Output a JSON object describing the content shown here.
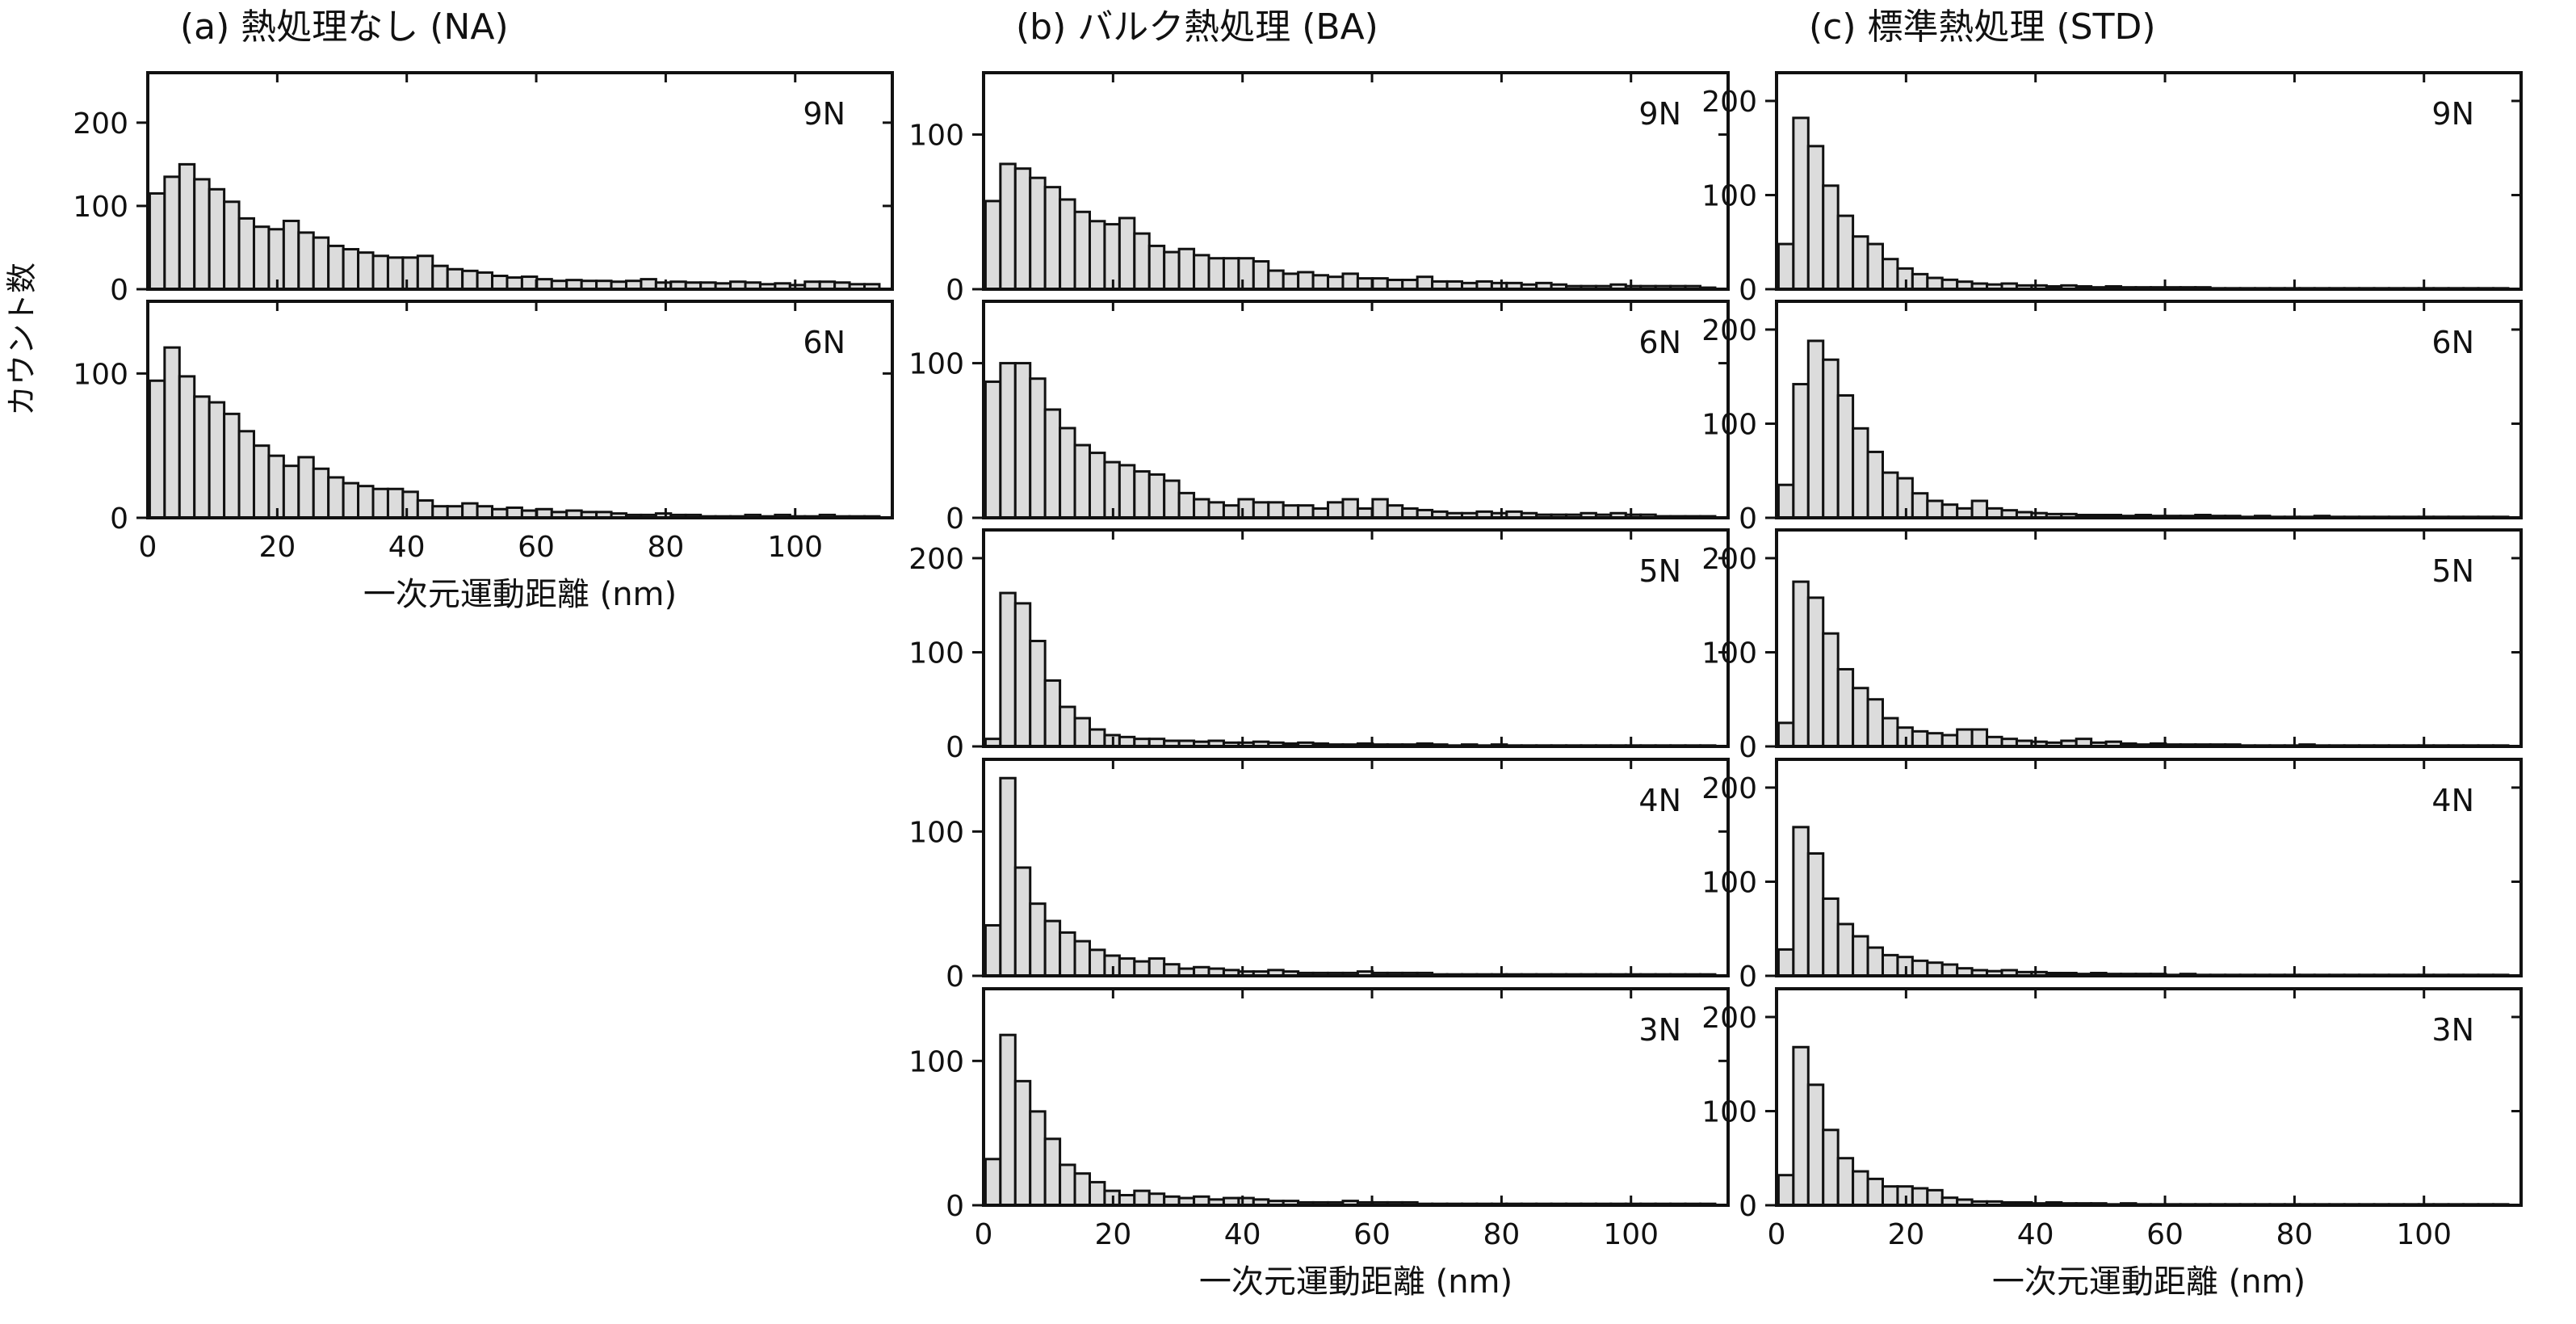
{
  "figure": {
    "y_label": "カウント数",
    "x_label": "一次元運動距離 (nm)"
  },
  "chart_data": [
    {
      "type": "bar",
      "title": "(a) 熱処理なし (NA)",
      "xlabel": "一次元運動距離 (nm)",
      "ylabel": "カウント数",
      "xlim": [
        0,
        115
      ],
      "xticks": [
        0,
        20,
        40,
        60,
        80,
        100
      ],
      "bin_width": 2.3,
      "panels": [
        {
          "label": "9N",
          "ylim": [
            0,
            260
          ],
          "yticks": [
            0,
            100,
            200
          ],
          "values": [
            115,
            135,
            150,
            132,
            120,
            105,
            85,
            75,
            72,
            82,
            68,
            62,
            52,
            48,
            44,
            40,
            38,
            38,
            40,
            28,
            24,
            22,
            20,
            16,
            14,
            15,
            12,
            10,
            11,
            10,
            10,
            9,
            10,
            12,
            8,
            9,
            8,
            8,
            7,
            9,
            8,
            6,
            7,
            5,
            9,
            9,
            8,
            6,
            6,
            5,
            6,
            6,
            7,
            5,
            6,
            5,
            4,
            5,
            4,
            4
          ]
        },
        {
          "label": "6N",
          "ylim": [
            0,
            150
          ],
          "yticks": [
            0,
            100
          ],
          "values": [
            95,
            118,
            98,
            84,
            80,
            72,
            60,
            50,
            43,
            36,
            42,
            34,
            28,
            24,
            22,
            20,
            20,
            18,
            12,
            8,
            8,
            10,
            8,
            6,
            7,
            5,
            6,
            4,
            5,
            4,
            4,
            3,
            2,
            2,
            3,
            2,
            2,
            1,
            1,
            1,
            2,
            1,
            2,
            1,
            1,
            2,
            1,
            1,
            1,
            1,
            1,
            1,
            1,
            1,
            1,
            1,
            1,
            1,
            1,
            1
          ]
        }
      ]
    },
    {
      "type": "bar",
      "title": "(b) バルク熱処理 (BA)",
      "xlabel": "一次元運動距離 (nm)",
      "ylabel": "カウント数",
      "xlim": [
        0,
        115
      ],
      "xticks": [
        0,
        20,
        40,
        60,
        80,
        100
      ],
      "bin_width": 2.3,
      "panels": [
        {
          "label": "9N",
          "ylim": [
            0,
            140
          ],
          "yticks": [
            0,
            100
          ],
          "values": [
            57,
            81,
            78,
            72,
            66,
            58,
            50,
            44,
            42,
            46,
            36,
            28,
            24,
            26,
            22,
            20,
            20,
            20,
            18,
            12,
            10,
            11,
            9,
            8,
            10,
            7,
            7,
            6,
            6,
            8,
            5,
            5,
            4,
            5,
            4,
            4,
            3,
            4,
            3,
            2,
            2,
            2,
            3,
            2,
            2,
            2,
            2,
            2,
            1,
            2,
            1,
            1,
            1,
            1,
            1,
            1,
            1,
            1,
            1,
            1
          ]
        },
        {
          "label": "6N",
          "ylim": [
            0,
            140
          ],
          "yticks": [
            0,
            100
          ],
          "values": [
            88,
            100,
            100,
            90,
            70,
            58,
            47,
            42,
            36,
            34,
            30,
            28,
            24,
            16,
            12,
            10,
            8,
            12,
            10,
            10,
            8,
            8,
            6,
            10,
            12,
            6,
            12,
            8,
            6,
            5,
            4,
            3,
            3,
            4,
            3,
            4,
            3,
            2,
            2,
            2,
            3,
            2,
            3,
            2,
            2,
            1,
            1,
            1,
            1,
            1,
            1,
            1,
            1,
            1,
            1,
            1,
            1,
            1,
            1,
            1
          ]
        },
        {
          "label": "5N",
          "ylim": [
            0,
            230
          ],
          "yticks": [
            0,
            100,
            200
          ],
          "values": [
            8,
            163,
            152,
            112,
            70,
            42,
            30,
            18,
            12,
            10,
            8,
            8,
            6,
            6,
            5,
            6,
            4,
            4,
            5,
            4,
            3,
            4,
            3,
            2,
            2,
            3,
            2,
            2,
            2,
            3,
            2,
            1,
            2,
            1,
            2,
            1,
            1,
            1,
            1,
            1,
            1,
            1,
            1,
            1,
            1,
            1,
            1,
            1,
            1,
            1,
            1,
            1,
            1,
            1,
            1,
            1,
            1,
            1,
            1,
            1
          ]
        },
        {
          "label": "4N",
          "ylim": [
            0,
            150
          ],
          "yticks": [
            0,
            100
          ],
          "values": [
            35,
            137,
            75,
            50,
            38,
            30,
            24,
            18,
            14,
            12,
            10,
            12,
            8,
            5,
            6,
            5,
            4,
            3,
            3,
            4,
            3,
            2,
            2,
            2,
            2,
            3,
            2,
            2,
            2,
            2,
            1,
            1,
            1,
            1,
            1,
            1,
            1,
            1,
            1,
            1,
            1,
            1,
            1,
            1,
            1,
            1,
            1,
            1,
            1,
            1,
            1,
            1,
            1,
            1,
            1,
            1,
            1,
            1,
            1,
            1
          ]
        },
        {
          "label": "3N",
          "ylim": [
            0,
            150
          ],
          "yticks": [
            0,
            100
          ],
          "values": [
            32,
            118,
            86,
            65,
            46,
            28,
            22,
            16,
            10,
            7,
            10,
            8,
            6,
            5,
            6,
            4,
            5,
            5,
            4,
            3,
            3,
            2,
            2,
            2,
            3,
            2,
            2,
            2,
            2,
            1,
            1,
            1,
            1,
            1,
            1,
            1,
            1,
            1,
            1,
            1,
            1,
            1,
            1,
            1,
            1,
            1,
            1,
            1,
            1,
            1,
            1,
            1,
            1,
            1,
            1,
            1,
            1,
            1,
            1,
            1
          ]
        }
      ]
    },
    {
      "type": "bar",
      "title": "(c) 標準熱処理 (STD)",
      "xlabel": "一次元運動距離 (nm)",
      "ylabel": "カウント数",
      "xlim": [
        0,
        115
      ],
      "xticks": [
        0,
        20,
        40,
        60,
        80,
        100
      ],
      "bin_width": 2.3,
      "panels": [
        {
          "label": "9N",
          "ylim": [
            0,
            230
          ],
          "yticks": [
            0,
            100,
            200
          ],
          "values": [
            48,
            182,
            152,
            110,
            78,
            56,
            48,
            32,
            22,
            16,
            12,
            10,
            8,
            6,
            5,
            6,
            4,
            4,
            3,
            4,
            3,
            2,
            3,
            2,
            2,
            2,
            2,
            2,
            2,
            1,
            1,
            1,
            1,
            1,
            1,
            1,
            1,
            1,
            1,
            1,
            1,
            1,
            1,
            1,
            1,
            1,
            1,
            1,
            1,
            1,
            1,
            1,
            1,
            1,
            1,
            1,
            1,
            1,
            1,
            1
          ]
        },
        {
          "label": "6N",
          "ylim": [
            0,
            230
          ],
          "yticks": [
            0,
            100,
            200
          ],
          "values": [
            35,
            142,
            188,
            168,
            130,
            95,
            70,
            48,
            42,
            26,
            18,
            14,
            10,
            18,
            10,
            8,
            6,
            5,
            4,
            4,
            3,
            3,
            3,
            2,
            3,
            2,
            2,
            2,
            3,
            2,
            2,
            1,
            2,
            1,
            1,
            1,
            2,
            1,
            1,
            1,
            1,
            1,
            1,
            1,
            1,
            1,
            1,
            1,
            1,
            1,
            1,
            1,
            1,
            1,
            1,
            1,
            1,
            1,
            1,
            1
          ]
        },
        {
          "label": "5N",
          "ylim": [
            0,
            230
          ],
          "yticks": [
            0,
            100,
            200
          ],
          "values": [
            25,
            175,
            158,
            120,
            82,
            62,
            50,
            30,
            20,
            16,
            14,
            12,
            18,
            18,
            10,
            8,
            6,
            5,
            4,
            6,
            8,
            4,
            5,
            3,
            2,
            3,
            2,
            2,
            2,
            2,
            2,
            1,
            1,
            1,
            1,
            2,
            1,
            1,
            1,
            1,
            1,
            1,
            1,
            1,
            1,
            1,
            1,
            1,
            1,
            1,
            1,
            1,
            1,
            1,
            1,
            1,
            1,
            1,
            1,
            1
          ]
        },
        {
          "label": "4N",
          "ylim": [
            0,
            230
          ],
          "yticks": [
            0,
            100,
            200
          ],
          "values": [
            28,
            158,
            130,
            82,
            55,
            42,
            30,
            22,
            20,
            16,
            14,
            12,
            8,
            6,
            5,
            6,
            4,
            4,
            3,
            3,
            2,
            3,
            2,
            2,
            2,
            2,
            1,
            2,
            1,
            1,
            1,
            1,
            1,
            1,
            1,
            1,
            1,
            1,
            1,
            1,
            1,
            1,
            1,
            1,
            1,
            1,
            1,
            1,
            1,
            1,
            1,
            1,
            1,
            1,
            1,
            1,
            1,
            1,
            1,
            1
          ]
        },
        {
          "label": "3N",
          "ylim": [
            0,
            230
          ],
          "yticks": [
            0,
            100,
            200
          ],
          "values": [
            32,
            168,
            128,
            80,
            50,
            36,
            28,
            20,
            20,
            18,
            16,
            8,
            6,
            4,
            4,
            3,
            3,
            2,
            3,
            2,
            2,
            2,
            1,
            2,
            1,
            1,
            1,
            1,
            1,
            1,
            1,
            1,
            1,
            1,
            1,
            1,
            1,
            1,
            1,
            1,
            1,
            1,
            1,
            1,
            1,
            1,
            1,
            1,
            1,
            1,
            1,
            1,
            1,
            1,
            1,
            1,
            1,
            1,
            1,
            1
          ]
        }
      ]
    }
  ]
}
